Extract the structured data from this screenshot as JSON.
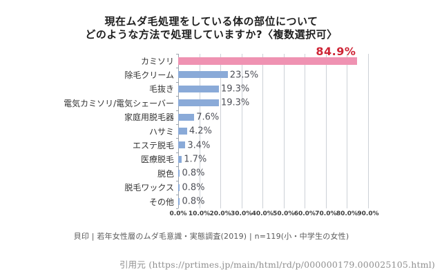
{
  "chart_data": {
    "type": "bar",
    "orientation": "horizontal",
    "title": "現在ムダ毛処理をしている体の部位について どのような方法で処理していますか?〈複数選択可〉",
    "title_lines": [
      "現在ムダ毛処理をしている体の部位について",
      "どのような方法で処理していますか?〈複数選択可〉"
    ],
    "categories": [
      "カミソリ",
      "除毛クリーム",
      "毛抜き",
      "電気カミソリ/電気シェーバー",
      "家庭用脱毛器",
      "ハサミ",
      "エステ脱毛",
      "医療脱毛",
      "脱色",
      "脱毛ワックス",
      "その他"
    ],
    "values": [
      84.9,
      23.5,
      19.3,
      19.3,
      7.6,
      4.2,
      3.4,
      1.7,
      0.8,
      0.8,
      0.8
    ],
    "value_labels": [
      "84.9%",
      "23.5%",
      "19.3%",
      "19.3%",
      "7.6%",
      "4.2%",
      "3.4%",
      "1.7%",
      "0.8%",
      "0.8%",
      "0.8%"
    ],
    "xlabel": "",
    "ylabel": "",
    "xlim": [
      0,
      90
    ],
    "x_ticks": [
      "0.0%",
      "10.0%",
      "20.0%",
      "30.0%",
      "40.0%",
      "50.0%",
      "60.0%",
      "70.0%",
      "80.0%",
      "90.0%"
    ],
    "grid": true,
    "legend_position": "none",
    "bar_color": "#8aaad8",
    "highlight_index": 0,
    "highlight_bar_color": "#ef92b2",
    "highlight_value_color": "#ce2435",
    "value_label_color": "#4d4f57",
    "source_note": "貝印 | 若年女性層のムダ毛意識・実態調査(2019) | n=119(小・中学生の女性)"
  },
  "citation": {
    "text": "引用元 (https://prtimes.jp/main/html/rd/p/000000179.000025105.html)"
  }
}
